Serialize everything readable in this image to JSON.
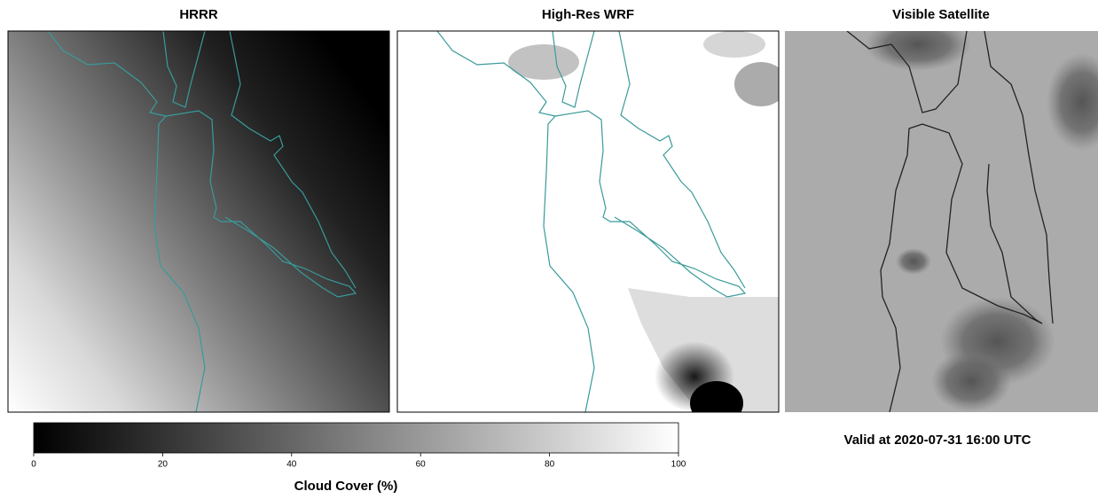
{
  "panels": [
    {
      "title": "HRRR"
    },
    {
      "title": "High-Res WRF"
    },
    {
      "title": "Visible Satellite"
    }
  ],
  "colorbar": {
    "label": "Cloud Cover (%)",
    "lim": [
      0,
      100
    ],
    "ticks": [
      0,
      20,
      40,
      60,
      80,
      100
    ]
  },
  "valid_text": "Valid at 2020-07-31 16:00 UTC"
}
